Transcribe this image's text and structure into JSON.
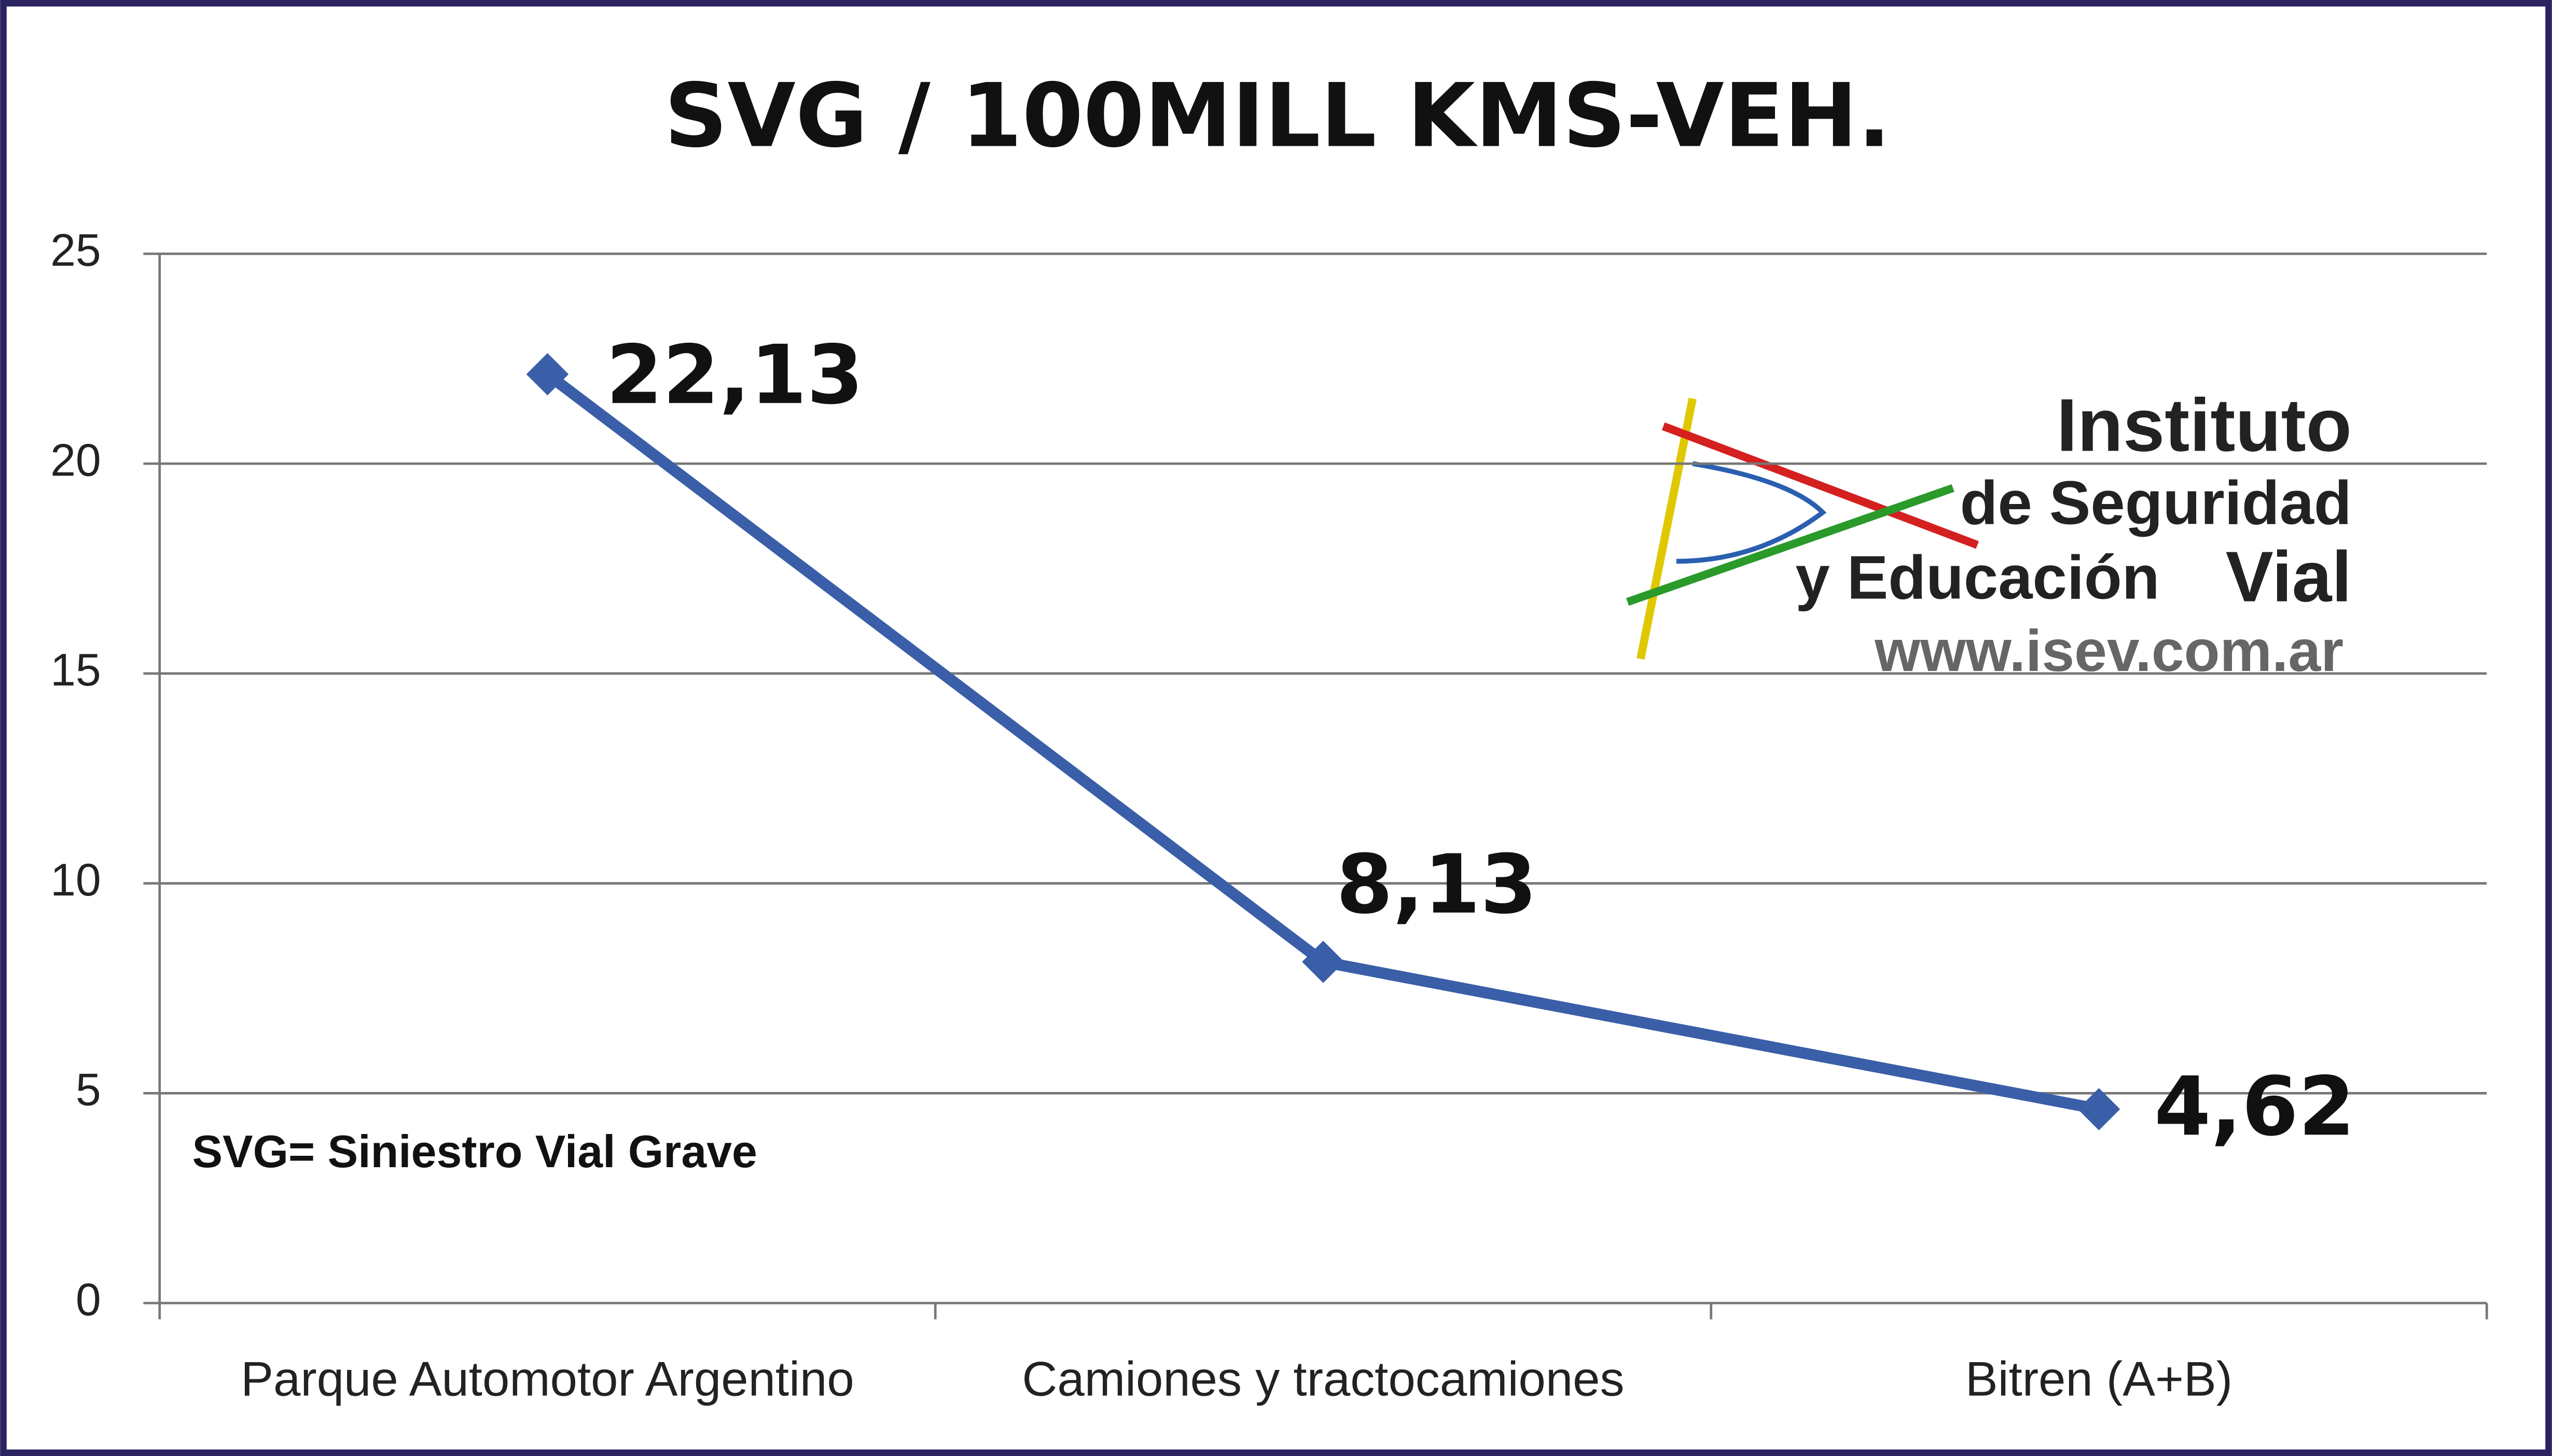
{
  "chart_data": {
    "type": "line",
    "title": "SVG / 100MILL KMS-VEH.",
    "categories": [
      "Parque Automotor Argentino",
      "Camiones y tractocamiones",
      "Bitren (A+B)"
    ],
    "series": [
      {
        "name": "SVG / 100MILL KMS-VEH.",
        "color": "#3a5ea8",
        "values": [
          22.13,
          8.13,
          4.62
        ],
        "value_labels": [
          "22,13",
          "8,13",
          "4,62"
        ]
      }
    ],
    "ylim": [
      0,
      25
    ],
    "yticks": [
      0,
      5,
      10,
      15,
      20,
      25
    ],
    "grid": true,
    "legend": false,
    "annotation": "SVG= Siniestro Vial Grave"
  },
  "logo": {
    "line1": "Instituto",
    "line2": "de Seguridad",
    "line3": "y Educación",
    "line3b": "Vial",
    "url": "www.isev.com.ar"
  }
}
